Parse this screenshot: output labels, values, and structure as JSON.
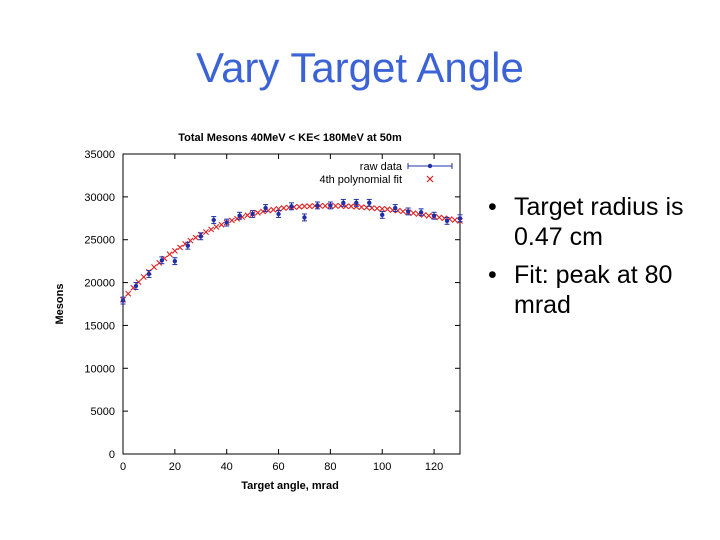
{
  "slide": {
    "title": "Vary Target Angle",
    "bullets": [
      "Target radius is 0.47 cm",
      "Fit: peak at 80 mrad"
    ]
  },
  "colors": {
    "title": "#3b63d6",
    "raw_data": "#1f2fa8",
    "fit": "#e02020"
  },
  "chart_data": {
    "type": "scatter",
    "title": "Total Mesons 40MeV < KE< 180MeV at 50m",
    "xlabel": "Target angle, mrad",
    "ylabel": "Mesons",
    "xlim": [
      0,
      130
    ],
    "ylim": [
      0,
      35000
    ],
    "xticks": [
      0,
      20,
      40,
      60,
      80,
      100,
      120
    ],
    "yticks": [
      0,
      5000,
      10000,
      15000,
      20000,
      25000,
      30000,
      35000
    ],
    "xtick_labels": [
      "0",
      "20",
      "40",
      "60",
      "80",
      "100",
      "120"
    ],
    "ytick_labels": [
      "0",
      "5000",
      "10000",
      "15000",
      "20000",
      "25000",
      "30000",
      "35000"
    ],
    "grid": false,
    "legend_position": "top-right",
    "series": [
      {
        "name": "raw data",
        "style": "points with error bars",
        "x": [
          0,
          5,
          10,
          15,
          20,
          25,
          30,
          35,
          40,
          45,
          50,
          55,
          60,
          65,
          70,
          75,
          80,
          85,
          90,
          95,
          100,
          105,
          110,
          115,
          120,
          125,
          130
        ],
        "y": [
          17900,
          19600,
          21000,
          22600,
          22500,
          24300,
          25400,
          27300,
          27000,
          27800,
          28000,
          28700,
          28000,
          28900,
          27600,
          29000,
          29000,
          29300,
          29300,
          29300,
          27900,
          28700,
          28300,
          28200,
          27800,
          27200,
          27500
        ],
        "yerr": [
          400,
          400,
          400,
          400,
          400,
          400,
          400,
          400,
          400,
          400,
          400,
          400,
          400,
          400,
          400,
          400,
          400,
          400,
          400,
          400,
          400,
          400,
          400,
          400,
          400,
          400,
          400
        ]
      },
      {
        "name": "4th polynomial fit",
        "style": "x markers",
        "x": [
          0,
          2,
          4,
          6,
          8,
          10,
          12,
          14,
          16,
          18,
          20,
          22,
          24,
          26,
          28,
          30,
          32,
          34,
          36,
          38,
          40,
          42,
          44,
          46,
          48,
          50,
          52,
          54,
          56,
          58,
          60,
          62,
          64,
          66,
          68,
          70,
          72,
          74,
          76,
          78,
          80,
          82,
          84,
          86,
          88,
          90,
          92,
          94,
          96,
          98,
          100,
          102,
          104,
          106,
          108,
          110,
          112,
          114,
          116,
          118,
          120,
          122,
          124,
          126,
          128,
          130
        ],
        "y": [
          18000,
          18700,
          19400,
          20050,
          20650,
          21250,
          21800,
          22300,
          22800,
          23300,
          23700,
          24100,
          24500,
          24900,
          25250,
          25600,
          25900,
          26200,
          26500,
          26750,
          27000,
          27250,
          27450,
          27650,
          27850,
          28000,
          28150,
          28300,
          28400,
          28500,
          28600,
          28700,
          28750,
          28800,
          28850,
          28900,
          28900,
          28950,
          28950,
          28950,
          28950,
          28950,
          28950,
          28900,
          28900,
          28850,
          28800,
          28750,
          28700,
          28650,
          28600,
          28550,
          28450,
          28400,
          28300,
          28200,
          28100,
          28000,
          27900,
          27800,
          27700,
          27600,
          27500,
          27400,
          27300,
          27200
        ]
      }
    ]
  }
}
